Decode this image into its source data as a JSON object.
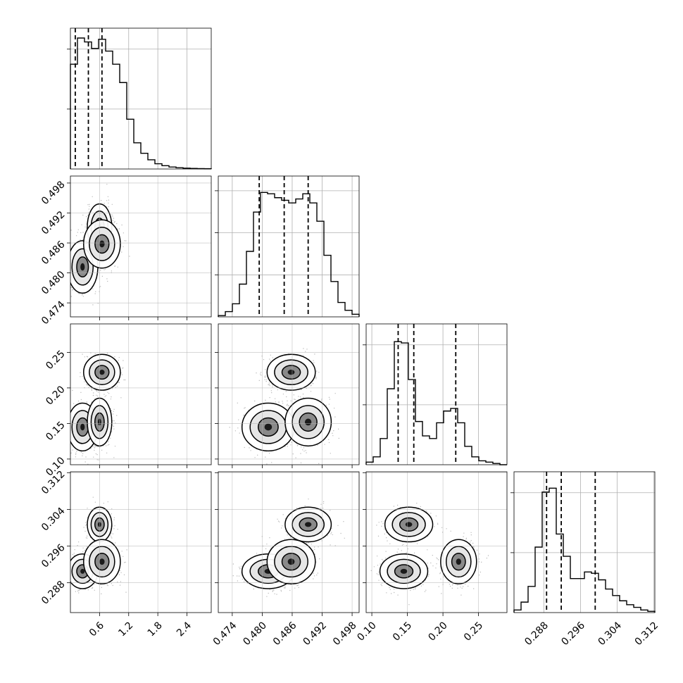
{
  "chart_data": {
    "type": "corner",
    "grid": true,
    "n_params": 4,
    "params": [
      {
        "range": [
          0.0,
          2.9
        ],
        "ticks": [
          0.6,
          1.2,
          1.8,
          2.4
        ],
        "tick_labels": [
          "0.6",
          "1.2",
          "1.8",
          "2.4"
        ],
        "quantiles": [
          0.1,
          0.37,
          0.65
        ],
        "hist_y_ticks": 2,
        "hist": [
          0.8,
          1.0,
          0.97,
          0.92,
          0.99,
          0.9,
          0.8,
          0.66,
          0.38,
          0.2,
          0.12,
          0.07,
          0.04,
          0.025,
          0.015,
          0.01,
          0.006,
          0.004,
          0.003,
          0.002
        ]
      },
      {
        "range": [
          0.4712,
          0.4994
        ],
        "ticks": [
          0.474,
          0.48,
          0.486,
          0.492,
          0.498
        ],
        "tick_labels": [
          "0.474",
          "0.480",
          "0.486",
          "0.492",
          "0.498"
        ],
        "quantiles": [
          0.4794,
          0.4844,
          0.4892
        ],
        "hist_y_ticks": 3,
        "hist": [
          0.01,
          0.04,
          0.1,
          0.25,
          0.5,
          0.8,
          0.95,
          0.94,
          0.91,
          0.89,
          0.87,
          0.9,
          0.94,
          0.87,
          0.73,
          0.47,
          0.27,
          0.11,
          0.05,
          0.02
        ]
      },
      {
        "range": [
          0.092,
          0.29
        ],
        "ticks": [
          0.1,
          0.15,
          0.2,
          0.25
        ],
        "tick_labels": [
          "0.10",
          "0.15",
          "0.20",
          "0.25"
        ],
        "quantiles": [
          0.137,
          0.159,
          0.218
        ],
        "hist_y_ticks": 2,
        "hist": [
          0.02,
          0.06,
          0.2,
          0.58,
          0.94,
          0.93,
          0.65,
          0.33,
          0.22,
          0.2,
          0.32,
          0.41,
          0.43,
          0.32,
          0.14,
          0.06,
          0.03,
          0.02,
          0.01,
          0.0
        ]
      },
      {
        "range": [
          0.2815,
          0.3122
        ],
        "ticks": [
          0.288,
          0.296,
          0.304,
          0.312
        ],
        "tick_labels": [
          "0.288",
          "0.296",
          "0.304",
          "0.312"
        ],
        "quantiles": [
          0.2886,
          0.2918,
          0.2992
        ],
        "hist_y_ticks": 2,
        "hist": [
          0.02,
          0.08,
          0.2,
          0.5,
          0.92,
          0.95,
          0.6,
          0.43,
          0.26,
          0.26,
          0.31,
          0.3,
          0.25,
          0.18,
          0.13,
          0.09,
          0.06,
          0.04,
          0.02,
          0.01
        ]
      }
    ],
    "y_labels": [
      null,
      {
        "ticks": [
          0.474,
          0.48,
          0.486,
          0.492,
          0.498
        ],
        "tick_labels": [
          "0.474",
          "0.480",
          "0.486",
          "0.492",
          "0.498"
        ]
      },
      {
        "ticks": [
          0.1,
          0.15,
          0.2,
          0.25
        ],
        "tick_labels": [
          "0.10",
          "0.15",
          "0.20",
          "0.25"
        ]
      },
      {
        "ticks": [
          0.288,
          0.296,
          0.304,
          0.312
        ],
        "tick_labels": [
          "0.288",
          "0.296",
          "0.304",
          "0.312"
        ]
      }
    ],
    "clusters": [
      {
        "p": [
          0.25,
          0.4812,
          0.145,
          0.2905
        ],
        "sd": [
          0.15,
          0.0025,
          0.016,
          0.0018
        ],
        "w": 0.35
      },
      {
        "p": [
          0.6,
          0.4892,
          0.152,
          0.3007
        ],
        "sd": [
          0.12,
          0.0022,
          0.016,
          0.0018
        ],
        "w": 0.33
      },
      {
        "p": [
          0.65,
          0.4858,
          0.222,
          0.2926
        ],
        "sd": [
          0.18,
          0.0023,
          0.012,
          0.0023
        ],
        "w": 0.32
      }
    ]
  }
}
